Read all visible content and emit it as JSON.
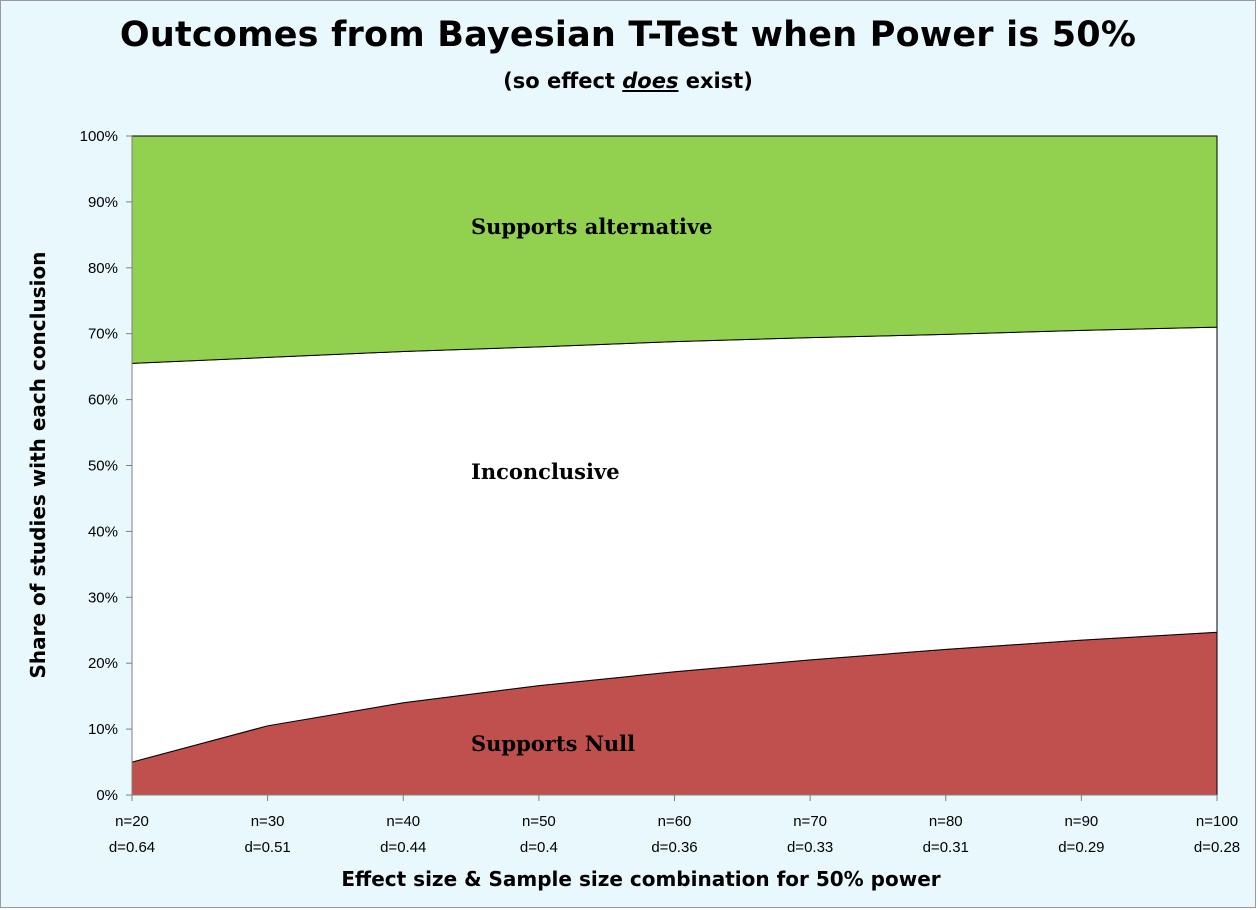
{
  "chart_data": {
    "type": "area",
    "stacked": true,
    "title": "Outcomes from Bayesian T-Test when Power is 50%",
    "subtitle": {
      "before": "(so effect ",
      "emphasis": "does",
      "after": " exist)"
    },
    "xlabel": "Effect size & Sample size combination  for 50% power",
    "ylabel": "Share of studies with each conclusion",
    "ylim": [
      0,
      100
    ],
    "yticks": [
      "0%",
      "10%",
      "20%",
      "30%",
      "40%",
      "50%",
      "60%",
      "70%",
      "80%",
      "90%",
      "100%"
    ],
    "categories": [
      {
        "n": "n=20",
        "d": "d=0.64"
      },
      {
        "n": "n=30",
        "d": "d=0.51"
      },
      {
        "n": "n=40",
        "d": "d=0.44"
      },
      {
        "n": "n=50",
        "d": "d=0.4"
      },
      {
        "n": "n=60",
        "d": "d=0.36"
      },
      {
        "n": "n=70",
        "d": "d=0.33"
      },
      {
        "n": "n=80",
        "d": "d=0.31"
      },
      {
        "n": "n=90",
        "d": "d=0.29"
      },
      {
        "n": "n=100",
        "d": "d=0.28"
      }
    ],
    "series": [
      {
        "name": "Supports Null",
        "color": "#c0504d",
        "values": [
          5,
          10.5,
          14,
          16.6,
          18.7,
          20.5,
          22.1,
          23.5,
          24.7
        ]
      },
      {
        "name": "Inconclusive",
        "color": "#ffffff",
        "values": [
          60.5,
          55.9,
          53.3,
          51.4,
          50.1,
          48.9,
          47.8,
          47,
          46.3
        ]
      },
      {
        "name": "Supports alternative",
        "color": "#92d050",
        "values": [
          34.5,
          33.6,
          32.7,
          32,
          31.2,
          30.6,
          30.1,
          29.5,
          29
        ]
      }
    ],
    "grid": false,
    "legend": "none"
  }
}
